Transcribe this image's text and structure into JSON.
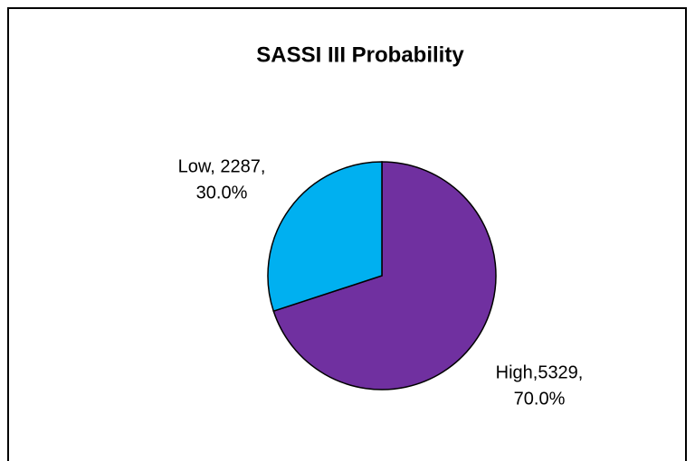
{
  "chart_data": {
    "type": "pie",
    "title": "SASSI III Probability",
    "categories": [
      "High",
      "Low"
    ],
    "values": [
      5329,
      2287
    ],
    "value_labels": [
      "High,5329,",
      "Low, 2287,"
    ],
    "percent_labels": [
      "70.0%",
      "30.0%"
    ],
    "colors": [
      "#7030a0",
      "#00b0f0"
    ]
  }
}
